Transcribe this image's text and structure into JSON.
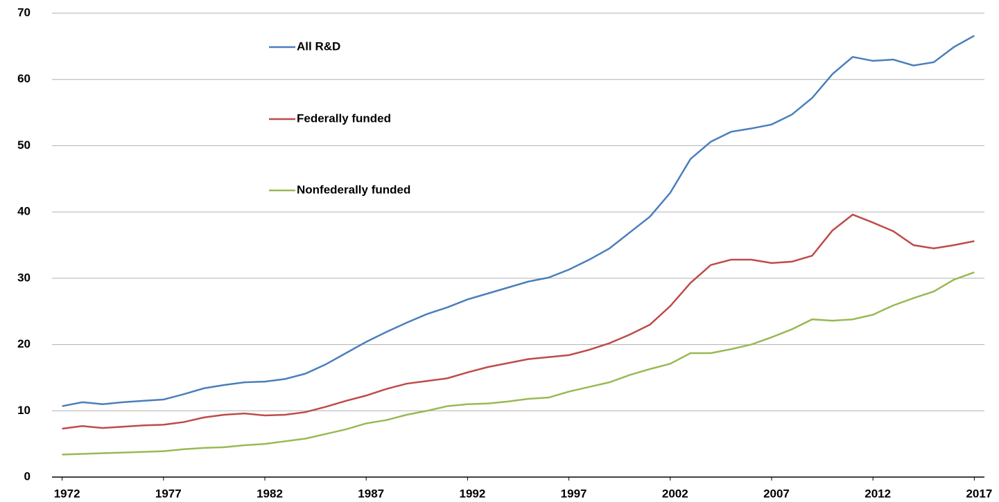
{
  "chart_data": {
    "type": "line",
    "x": [
      1972,
      1973,
      1974,
      1975,
      1976,
      1977,
      1978,
      1979,
      1980,
      1981,
      1982,
      1983,
      1984,
      1985,
      1986,
      1987,
      1988,
      1989,
      1990,
      1991,
      1992,
      1993,
      1994,
      1995,
      1996,
      1997,
      1998,
      1999,
      2000,
      2001,
      2002,
      2003,
      2004,
      2005,
      2006,
      2007,
      2008,
      2009,
      2010,
      2011,
      2012,
      2013,
      2014,
      2015,
      2016,
      2017
    ],
    "series": [
      {
        "name": "All R&D",
        "color": "#4a7ebb",
        "values": [
          10.7,
          11.3,
          11.0,
          11.3,
          11.5,
          11.7,
          12.5,
          13.4,
          13.9,
          14.3,
          14.4,
          14.8,
          15.6,
          17.0,
          18.7,
          20.4,
          21.9,
          23.3,
          24.6,
          25.6,
          26.8,
          27.7,
          28.6,
          29.5,
          30.1,
          31.3,
          32.8,
          34.5,
          36.9,
          39.3,
          42.9,
          48.0,
          50.6,
          52.1,
          52.6,
          53.2,
          54.7,
          57.2,
          60.8,
          63.4,
          62.8,
          63.0,
          62.1,
          62.6,
          64.9,
          66.6
        ]
      },
      {
        "name": "Federally funded",
        "color": "#be4b48",
        "values": [
          7.3,
          7.7,
          7.4,
          7.6,
          7.8,
          7.9,
          8.3,
          9.0,
          9.4,
          9.6,
          9.3,
          9.4,
          9.8,
          10.6,
          11.5,
          12.3,
          13.3,
          14.1,
          14.5,
          14.9,
          15.8,
          16.6,
          17.2,
          17.8,
          18.1,
          18.4,
          19.2,
          20.2,
          21.5,
          23.0,
          25.8,
          29.3,
          32.0,
          32.8,
          32.8,
          32.3,
          32.5,
          33.4,
          37.2,
          39.6,
          38.4,
          37.1,
          35.0,
          34.5,
          35.0,
          35.6
        ]
      },
      {
        "name": "Nonfederally funded",
        "color": "#98b954",
        "values": [
          3.4,
          3.5,
          3.6,
          3.7,
          3.8,
          3.9,
          4.2,
          4.4,
          4.5,
          4.8,
          5.0,
          5.4,
          5.8,
          6.5,
          7.2,
          8.1,
          8.6,
          9.4,
          10.0,
          10.7,
          11.0,
          11.1,
          11.4,
          11.8,
          12.0,
          12.9,
          13.6,
          14.3,
          15.4,
          16.3,
          17.1,
          18.7,
          18.7,
          19.3,
          20.0,
          21.1,
          22.3,
          23.8,
          23.6,
          23.8,
          24.5,
          25.9,
          27.0,
          28.0,
          29.8,
          30.9
        ]
      }
    ],
    "xlim": [
      1971.5,
      2017.5
    ],
    "xticks": [
      1972,
      1977,
      1982,
      1987,
      1992,
      1997,
      2002,
      2007,
      2012,
      2017
    ],
    "ylim": [
      0,
      70
    ],
    "yticks": [
      0,
      10,
      20,
      30,
      40,
      50,
      60,
      70
    ],
    "grid": true
  }
}
